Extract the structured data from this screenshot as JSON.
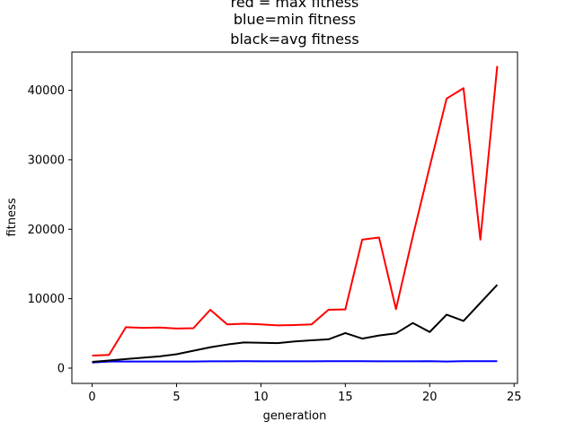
{
  "chart_data": {
    "type": "line",
    "title_lines": [
      "red = max fitness",
      "blue=min fitness",
      "black=avg fitness"
    ],
    "xlabel": "generation",
    "ylabel": "fitness",
    "xlim": [
      -1.2,
      25.2
    ],
    "ylim": [
      -2200,
      45500
    ],
    "xticks": [
      0,
      5,
      10,
      15,
      20,
      25
    ],
    "yticks": [
      0,
      10000,
      20000,
      30000,
      40000
    ],
    "grid": false,
    "x": [
      0,
      1,
      2,
      3,
      4,
      5,
      6,
      7,
      8,
      9,
      10,
      11,
      12,
      13,
      14,
      15,
      16,
      17,
      18,
      19,
      20,
      21,
      22,
      23,
      24
    ],
    "series": [
      {
        "color": "#ff0000",
        "label": "max fitness",
        "values": [
          1800,
          1900,
          5900,
          5800,
          5850,
          5700,
          5750,
          8400,
          6300,
          6400,
          6300,
          6150,
          6200,
          6300,
          8400,
          8450,
          18500,
          18800,
          8500,
          19000,
          29000,
          38800,
          40300,
          18500,
          43500
        ]
      },
      {
        "color": "#0000ff",
        "label": "min fitness",
        "values": [
          800,
          950,
          950,
          950,
          950,
          950,
          950,
          980,
          980,
          1000,
          980,
          980,
          980,
          980,
          1000,
          1000,
          1000,
          980,
          980,
          980,
          1000,
          950,
          1000,
          1000,
          1000
        ]
      },
      {
        "color": "#000000",
        "label": "avg fitness",
        "values": [
          900,
          1100,
          1300,
          1500,
          1700,
          2000,
          2500,
          3000,
          3400,
          3700,
          3650,
          3600,
          3850,
          4000,
          4150,
          5050,
          4250,
          4700,
          5000,
          6500,
          5200,
          7700,
          6800,
          9400,
          12000
        ]
      }
    ]
  }
}
